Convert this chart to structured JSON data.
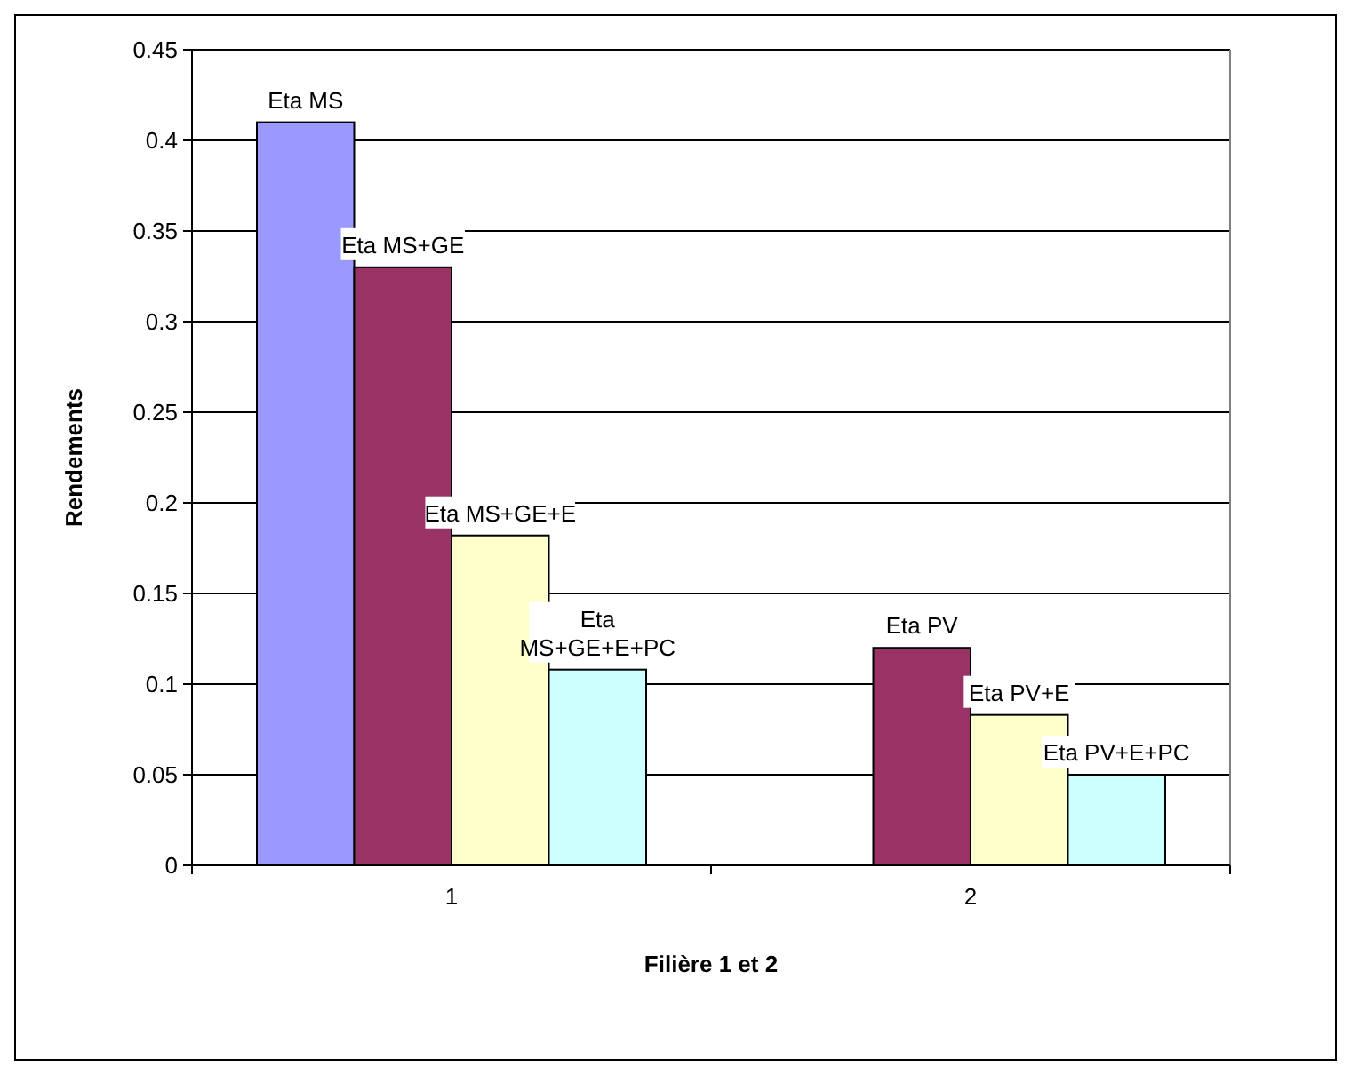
{
  "chart_data": {
    "type": "bar",
    "xlabel": "Filière 1 et 2",
    "ylabel": "Rendements",
    "categories": [
      "1",
      "2"
    ],
    "series": [
      {
        "color": "#9999ff",
        "values": [
          0.41,
          null
        ],
        "value_labels": [
          "Eta MS",
          null
        ]
      },
      {
        "color": "#993366",
        "values": [
          0.33,
          0.12
        ],
        "value_labels": [
          "Eta MS+GE",
          "Eta PV"
        ]
      },
      {
        "color": "#ffffcc",
        "values": [
          0.182,
          0.083
        ],
        "value_labels": [
          "Eta MS+GE+E",
          "Eta PV+E"
        ]
      },
      {
        "color": "#ccffff",
        "values": [
          0.108,
          0.05
        ],
        "value_labels": [
          "Eta MS+GE+E+PC",
          "Eta PV+E+PC"
        ]
      }
    ],
    "ylim": [
      0,
      0.45
    ],
    "yticks": [
      0,
      0.05,
      0.1,
      0.15,
      0.2,
      0.25,
      0.3,
      0.35,
      0.4,
      0.45
    ],
    "grid": "y"
  }
}
